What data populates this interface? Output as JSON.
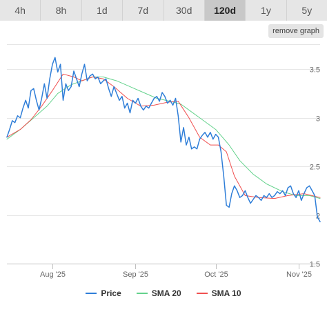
{
  "ranges": {
    "labels": [
      "4h",
      "8h",
      "1d",
      "7d",
      "30d",
      "120d",
      "1y",
      "5y"
    ],
    "selected": "120d"
  },
  "remove_graph_label": "remove graph",
  "colors": {
    "price": "#2f7ed8",
    "sma20": "#64d28c",
    "sma10": "#f05050"
  },
  "chart_data": {
    "type": "line",
    "ylim": [
      1.5,
      3.75
    ],
    "y_ticks": [
      1.5,
      2,
      2.5,
      3,
      3.5
    ],
    "y_tick_labels": [
      "1.5",
      "2",
      "2.5",
      "3",
      "3.5"
    ],
    "x_range": [
      "2025-07-15",
      "2025-11-09"
    ],
    "x_ticks": [
      "2025-08-01",
      "2025-09-01",
      "2025-10-01",
      "2025-11-01"
    ],
    "x_tick_labels": [
      "Aug '25",
      "Sep '25",
      "Oct '25",
      "Nov '25"
    ],
    "legend_position": "bottom",
    "series": [
      {
        "name": "Price",
        "color": "#2f7ed8",
        "points": [
          [
            "2025-07-15",
            2.8
          ],
          [
            "2025-07-16",
            2.88
          ],
          [
            "2025-07-17",
            2.97
          ],
          [
            "2025-07-18",
            2.95
          ],
          [
            "2025-07-19",
            3.02
          ],
          [
            "2025-07-20",
            3.0
          ],
          [
            "2025-07-21",
            3.1
          ],
          [
            "2025-07-22",
            3.18
          ],
          [
            "2025-07-23",
            3.1
          ],
          [
            "2025-07-24",
            3.28
          ],
          [
            "2025-07-25",
            3.3
          ],
          [
            "2025-07-26",
            3.18
          ],
          [
            "2025-07-27",
            3.08
          ],
          [
            "2025-07-28",
            3.2
          ],
          [
            "2025-07-29",
            3.35
          ],
          [
            "2025-07-30",
            3.2
          ],
          [
            "2025-07-31",
            3.4
          ],
          [
            "2025-08-01",
            3.55
          ],
          [
            "2025-08-02",
            3.62
          ],
          [
            "2025-08-03",
            3.47
          ],
          [
            "2025-08-04",
            3.55
          ],
          [
            "2025-08-05",
            3.18
          ],
          [
            "2025-08-06",
            3.35
          ],
          [
            "2025-08-07",
            3.28
          ],
          [
            "2025-08-08",
            3.32
          ],
          [
            "2025-08-09",
            3.48
          ],
          [
            "2025-08-10",
            3.4
          ],
          [
            "2025-08-11",
            3.32
          ],
          [
            "2025-08-12",
            3.45
          ],
          [
            "2025-08-13",
            3.55
          ],
          [
            "2025-08-14",
            3.38
          ],
          [
            "2025-08-15",
            3.43
          ],
          [
            "2025-08-16",
            3.45
          ],
          [
            "2025-08-17",
            3.4
          ],
          [
            "2025-08-18",
            3.42
          ],
          [
            "2025-08-19",
            3.35
          ],
          [
            "2025-08-20",
            3.38
          ],
          [
            "2025-08-21",
            3.4
          ],
          [
            "2025-08-22",
            3.3
          ],
          [
            "2025-08-23",
            3.22
          ],
          [
            "2025-08-24",
            3.32
          ],
          [
            "2025-08-25",
            3.25
          ],
          [
            "2025-08-26",
            3.18
          ],
          [
            "2025-08-27",
            3.22
          ],
          [
            "2025-08-28",
            3.1
          ],
          [
            "2025-08-29",
            3.15
          ],
          [
            "2025-08-30",
            3.05
          ],
          [
            "2025-08-31",
            3.18
          ],
          [
            "2025-09-01",
            3.15
          ],
          [
            "2025-09-02",
            3.2
          ],
          [
            "2025-09-03",
            3.12
          ],
          [
            "2025-09-04",
            3.08
          ],
          [
            "2025-09-05",
            3.12
          ],
          [
            "2025-09-06",
            3.1
          ],
          [
            "2025-09-07",
            3.15
          ],
          [
            "2025-09-08",
            3.2
          ],
          [
            "2025-09-09",
            3.22
          ],
          [
            "2025-09-10",
            3.17
          ],
          [
            "2025-09-11",
            3.26
          ],
          [
            "2025-09-12",
            3.22
          ],
          [
            "2025-09-13",
            3.15
          ],
          [
            "2025-09-14",
            3.18
          ],
          [
            "2025-09-15",
            3.13
          ],
          [
            "2025-09-16",
            3.2
          ],
          [
            "2025-09-17",
            3.02
          ],
          [
            "2025-09-18",
            2.75
          ],
          [
            "2025-09-19",
            2.9
          ],
          [
            "2025-09-20",
            2.72
          ],
          [
            "2025-09-21",
            2.8
          ],
          [
            "2025-09-22",
            2.68
          ],
          [
            "2025-09-23",
            2.7
          ],
          [
            "2025-09-24",
            2.68
          ],
          [
            "2025-09-25",
            2.78
          ],
          [
            "2025-09-26",
            2.82
          ],
          [
            "2025-09-27",
            2.85
          ],
          [
            "2025-09-28",
            2.8
          ],
          [
            "2025-09-29",
            2.85
          ],
          [
            "2025-09-30",
            2.78
          ],
          [
            "2025-10-01",
            2.83
          ],
          [
            "2025-10-02",
            2.8
          ],
          [
            "2025-10-03",
            2.65
          ],
          [
            "2025-10-04",
            2.4
          ],
          [
            "2025-10-05",
            2.1
          ],
          [
            "2025-10-06",
            2.08
          ],
          [
            "2025-10-07",
            2.22
          ],
          [
            "2025-10-08",
            2.3
          ],
          [
            "2025-10-09",
            2.25
          ],
          [
            "2025-10-10",
            2.18
          ],
          [
            "2025-10-11",
            2.2
          ],
          [
            "2025-10-12",
            2.25
          ],
          [
            "2025-10-13",
            2.18
          ],
          [
            "2025-10-14",
            2.12
          ],
          [
            "2025-10-15",
            2.16
          ],
          [
            "2025-10-16",
            2.2
          ],
          [
            "2025-10-17",
            2.18
          ],
          [
            "2025-10-18",
            2.15
          ],
          [
            "2025-10-19",
            2.2
          ],
          [
            "2025-10-20",
            2.18
          ],
          [
            "2025-10-21",
            2.22
          ],
          [
            "2025-10-22",
            2.18
          ],
          [
            "2025-10-23",
            2.2
          ],
          [
            "2025-10-24",
            2.24
          ],
          [
            "2025-10-25",
            2.22
          ],
          [
            "2025-10-26",
            2.25
          ],
          [
            "2025-10-27",
            2.2
          ],
          [
            "2025-10-28",
            2.28
          ],
          [
            "2025-10-29",
            2.3
          ],
          [
            "2025-10-30",
            2.22
          ],
          [
            "2025-10-31",
            2.18
          ],
          [
            "2025-11-01",
            2.25
          ],
          [
            "2025-11-02",
            2.15
          ],
          [
            "2025-11-03",
            2.22
          ],
          [
            "2025-11-04",
            2.28
          ],
          [
            "2025-11-05",
            2.3
          ],
          [
            "2025-11-06",
            2.25
          ],
          [
            "2025-11-07",
            2.2
          ],
          [
            "2025-11-08",
            1.98
          ],
          [
            "2025-11-09",
            1.93
          ]
        ]
      },
      {
        "name": "SMA 20",
        "color": "#64d28c",
        "points": [
          [
            "2025-07-15",
            2.78
          ],
          [
            "2025-07-20",
            2.88
          ],
          [
            "2025-07-25",
            3.0
          ],
          [
            "2025-07-30",
            3.12
          ],
          [
            "2025-08-03",
            3.25
          ],
          [
            "2025-08-08",
            3.34
          ],
          [
            "2025-08-12",
            3.38
          ],
          [
            "2025-08-16",
            3.42
          ],
          [
            "2025-08-20",
            3.42
          ],
          [
            "2025-08-25",
            3.38
          ],
          [
            "2025-08-30",
            3.32
          ],
          [
            "2025-09-04",
            3.26
          ],
          [
            "2025-09-09",
            3.2
          ],
          [
            "2025-09-14",
            3.17
          ],
          [
            "2025-09-18",
            3.14
          ],
          [
            "2025-09-22",
            3.06
          ],
          [
            "2025-09-26",
            2.98
          ],
          [
            "2025-10-01",
            2.88
          ],
          [
            "2025-10-06",
            2.72
          ],
          [
            "2025-10-10",
            2.56
          ],
          [
            "2025-10-15",
            2.42
          ],
          [
            "2025-10-20",
            2.32
          ],
          [
            "2025-10-26",
            2.24
          ],
          [
            "2025-10-31",
            2.2
          ],
          [
            "2025-11-05",
            2.2
          ],
          [
            "2025-11-09",
            2.17
          ]
        ]
      },
      {
        "name": "SMA 10",
        "color": "#f05050",
        "points": [
          [
            "2025-07-15",
            2.8
          ],
          [
            "2025-07-20",
            2.88
          ],
          [
            "2025-07-24",
            2.98
          ],
          [
            "2025-07-28",
            3.12
          ],
          [
            "2025-08-01",
            3.28
          ],
          [
            "2025-08-05",
            3.45
          ],
          [
            "2025-08-09",
            3.42
          ],
          [
            "2025-08-12",
            3.38
          ],
          [
            "2025-08-16",
            3.42
          ],
          [
            "2025-08-20",
            3.4
          ],
          [
            "2025-08-24",
            3.32
          ],
          [
            "2025-08-29",
            3.2
          ],
          [
            "2025-09-03",
            3.12
          ],
          [
            "2025-09-08",
            3.13
          ],
          [
            "2025-09-13",
            3.16
          ],
          [
            "2025-09-17",
            3.17
          ],
          [
            "2025-09-21",
            3.0
          ],
          [
            "2025-09-25",
            2.8
          ],
          [
            "2025-09-29",
            2.72
          ],
          [
            "2025-10-02",
            2.72
          ],
          [
            "2025-10-05",
            2.65
          ],
          [
            "2025-10-08",
            2.4
          ],
          [
            "2025-10-12",
            2.2
          ],
          [
            "2025-10-17",
            2.18
          ],
          [
            "2025-10-23",
            2.17
          ],
          [
            "2025-10-28",
            2.2
          ],
          [
            "2025-11-03",
            2.22
          ],
          [
            "2025-11-09",
            2.18
          ]
        ]
      }
    ]
  }
}
